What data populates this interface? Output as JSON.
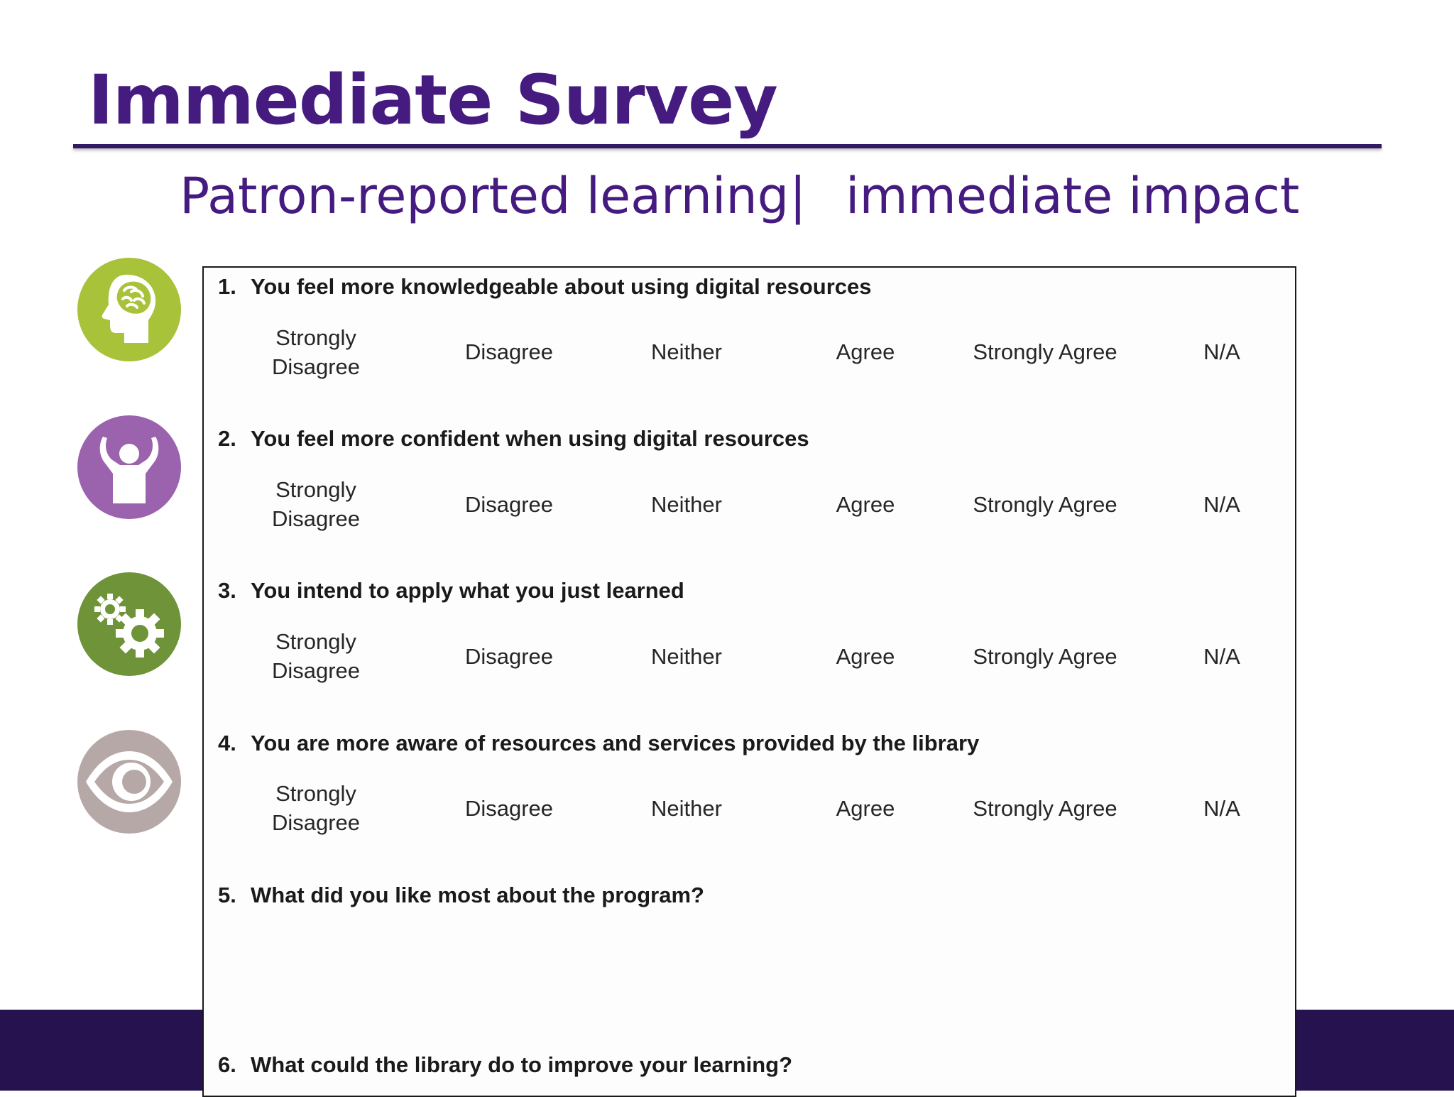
{
  "slide": {
    "title": "Immediate Survey",
    "subtitle_left": "Patron-reported learning",
    "subtitle_separator": "|",
    "subtitle_right": "immediate impact"
  },
  "icons": [
    {
      "name": "brain-head-icon",
      "color": "#a8c23a"
    },
    {
      "name": "raised-arms-person-icon",
      "color": "#9b62ae"
    },
    {
      "name": "gears-icon",
      "color": "#6f9338"
    },
    {
      "name": "eye-icon",
      "color": "#b7a8a8"
    }
  ],
  "survey": {
    "scale": [
      "Strongly Disagree",
      "Disagree",
      "Neither",
      "Agree",
      "Strongly Agree",
      "N/A"
    ],
    "questions": [
      {
        "number": "1.",
        "text": "You feel more knowledgeable about using digital resources"
      },
      {
        "number": "2.",
        "text": "You feel more confident when using digital resources"
      },
      {
        "number": "3.",
        "text": "You intend to apply what you just learned"
      },
      {
        "number": "4.",
        "text": "You are more aware of resources and services provided by the library"
      },
      {
        "number": "5.",
        "text": "What did you like most about the program?"
      },
      {
        "number": "6.",
        "text": "What could the library do to improve your learning?"
      }
    ]
  },
  "colors": {
    "title": "#451b80",
    "footer": "#26124f"
  }
}
